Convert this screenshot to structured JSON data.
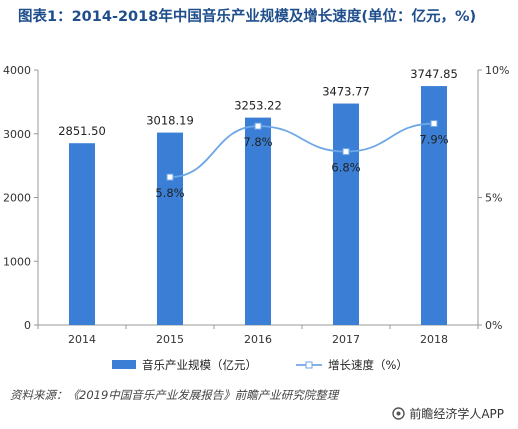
{
  "chart_data": {
    "type": "bar+line",
    "title": "图表1：2014-2018年中国音乐产业规模及增长速度(单位：亿元，%)",
    "categories": [
      "2014",
      "2015",
      "2016",
      "2017",
      "2018"
    ],
    "series": [
      {
        "name": "音乐产业规模（亿元）",
        "type": "bar",
        "axis": "left",
        "color": "#3a7fd5",
        "values": [
          2851.5,
          3018.19,
          3253.22,
          3473.77,
          3747.85
        ],
        "labels": [
          "2851.50",
          "3018.19",
          "3253.22",
          "3473.77",
          "3747.85"
        ]
      },
      {
        "name": "增长速度（%）",
        "type": "line",
        "axis": "right",
        "color": "#6ea7e6",
        "values": [
          null,
          5.8,
          7.8,
          6.8,
          7.9
        ],
        "labels": [
          "",
          "5.8%",
          "7.8%",
          "6.8%",
          "7.9%"
        ]
      }
    ],
    "y_left": {
      "ylim": [
        0,
        4000
      ],
      "ticks": [
        "0",
        "1000",
        "2000",
        "3000",
        "4000"
      ],
      "tick_values": [
        0,
        1000,
        2000,
        3000,
        4000
      ]
    },
    "y_right": {
      "ylim": [
        0,
        10
      ],
      "ticks": [
        "0%",
        "5%",
        "10%"
      ],
      "tick_values": [
        0,
        5,
        10
      ]
    },
    "legend_position": "bottom",
    "grid": false
  },
  "source": "资料来源：《2019中国音乐产业发展报告》前瞻产业研究院整理",
  "brand": "前瞻经济学人APP"
}
